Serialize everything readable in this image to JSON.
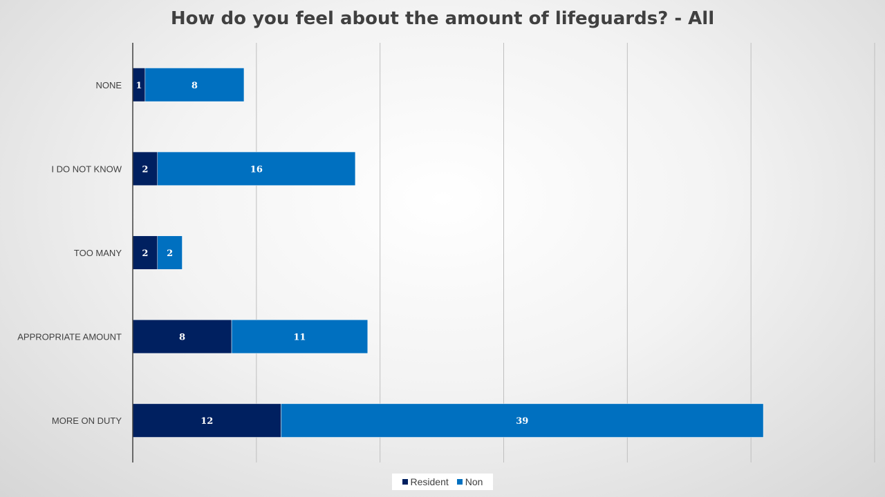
{
  "chart_data": {
    "type": "bar",
    "orientation": "horizontal",
    "stacked": true,
    "title": "How do you feel about the amount of lifeguards? - All",
    "categories": [
      "NONE",
      "I DO NOT KNOW",
      "TOO MANY",
      "APPROPRIATE AMOUNT",
      "MORE ON DUTY"
    ],
    "series": [
      {
        "name": "Resident",
        "color": "#002060",
        "values": [
          1,
          2,
          2,
          8,
          12
        ]
      },
      {
        "name": "Non",
        "color": "#0070C0",
        "values": [
          8,
          16,
          2,
          11,
          39
        ]
      }
    ],
    "xlim": [
      0,
      60
    ],
    "grid": true,
    "legend": "bottom"
  }
}
